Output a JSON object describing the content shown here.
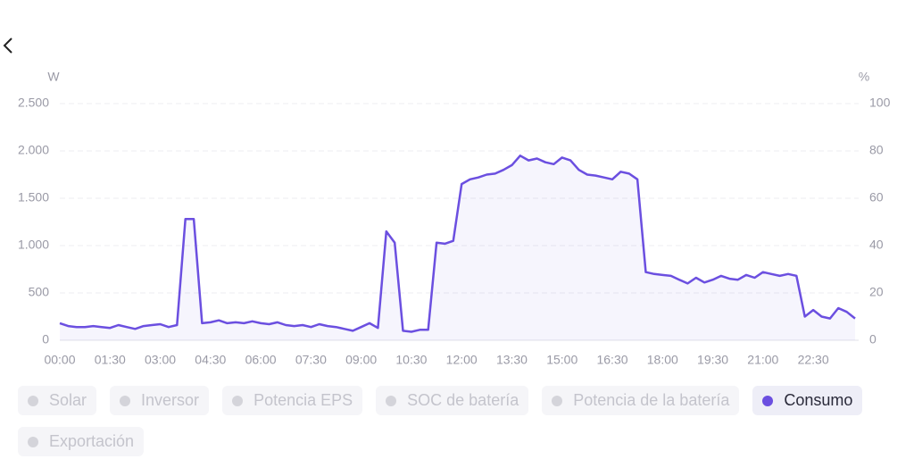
{
  "chart_data": {
    "type": "line",
    "y_unit": "W",
    "y2_unit": "%",
    "x": [
      0,
      15,
      30,
      45,
      60,
      75,
      90,
      105,
      120,
      135,
      150,
      165,
      180,
      195,
      210,
      225,
      240,
      255,
      270,
      285,
      300,
      315,
      330,
      345,
      360,
      375,
      390,
      405,
      420,
      435,
      450,
      465,
      480,
      495,
      510,
      525,
      540,
      555,
      570,
      585,
      600,
      615,
      630,
      645,
      660,
      675,
      690,
      705,
      720,
      735,
      750,
      765,
      780,
      795,
      810,
      825,
      840,
      855,
      870,
      885,
      900,
      915,
      930,
      945,
      960,
      975,
      990,
      1005,
      1020,
      1035,
      1050,
      1065,
      1080,
      1095,
      1110,
      1125,
      1140,
      1155,
      1170,
      1185,
      1200,
      1215,
      1230,
      1245,
      1260,
      1275,
      1290,
      1305,
      1320,
      1335,
      1350,
      1365,
      1380,
      1395,
      1410,
      1425
    ],
    "xlim": [
      0,
      1425
    ],
    "xticks": [
      {
        "value": 0,
        "label": "00:00"
      },
      {
        "value": 90,
        "label": "01:30"
      },
      {
        "value": 180,
        "label": "03:00"
      },
      {
        "value": 270,
        "label": "04:30"
      },
      {
        "value": 360,
        "label": "06:00"
      },
      {
        "value": 450,
        "label": "07:30"
      },
      {
        "value": 540,
        "label": "09:00"
      },
      {
        "value": 630,
        "label": "10:30"
      },
      {
        "value": 720,
        "label": "12:00"
      },
      {
        "value": 810,
        "label": "13:30"
      },
      {
        "value": 900,
        "label": "15:00"
      },
      {
        "value": 990,
        "label": "16:30"
      },
      {
        "value": 1080,
        "label": "18:00"
      },
      {
        "value": 1170,
        "label": "19:30"
      },
      {
        "value": 1260,
        "label": "21:00"
      },
      {
        "value": 1350,
        "label": "22:30"
      }
    ],
    "ylim": [
      0,
      2500
    ],
    "yticks": [
      0,
      500,
      {
        "value": 1000,
        "label": "1.000"
      },
      {
        "value": 1500,
        "label": "1.500"
      },
      {
        "value": 2000,
        "label": "2.000"
      },
      {
        "value": 2500,
        "label": "2.500"
      }
    ],
    "y2lim": [
      0,
      100
    ],
    "y2ticks": [
      0,
      20,
      40,
      60,
      80,
      100
    ],
    "grid": true,
    "series": [
      {
        "name": "Solar",
        "visible": false
      },
      {
        "name": "Inversor",
        "visible": false
      },
      {
        "name": "Potencia EPS",
        "visible": false
      },
      {
        "name": "SOC de batería",
        "visible": false
      },
      {
        "name": "Potencia de la batería",
        "visible": false
      },
      {
        "name": "Consumo",
        "visible": true,
        "color": "#6b4fe0",
        "values": [
          180,
          150,
          140,
          140,
          150,
          140,
          130,
          160,
          140,
          120,
          150,
          160,
          170,
          140,
          160,
          1280,
          1280,
          180,
          190,
          210,
          180,
          190,
          180,
          200,
          180,
          170,
          190,
          160,
          150,
          160,
          140,
          170,
          150,
          140,
          120,
          100,
          140,
          180,
          130,
          1150,
          1030,
          100,
          90,
          110,
          110,
          1030,
          1020,
          1050,
          1650,
          1700,
          1720,
          1750,
          1760,
          1800,
          1850,
          1950,
          1900,
          1920,
          1880,
          1860,
          1930,
          1900,
          1800,
          1750,
          1740,
          1720,
          1700,
          1780,
          1760,
          1700,
          720,
          700,
          690,
          680,
          640,
          600,
          660,
          610,
          640,
          680,
          650,
          640,
          690,
          660,
          720,
          700,
          680,
          700,
          680,
          250,
          320,
          250,
          230,
          340,
          300,
          230
        ]
      },
      {
        "name": "Exportación",
        "visible": false
      }
    ]
  }
}
